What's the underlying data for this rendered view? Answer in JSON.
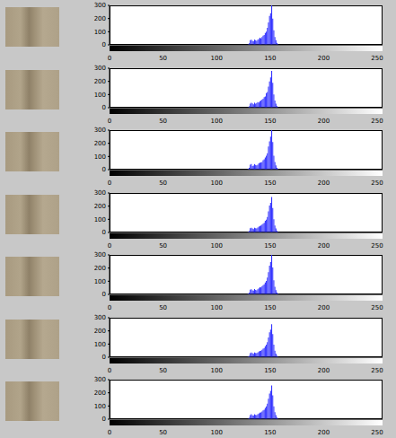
{
  "chart_data": [
    {
      "type": "histogram",
      "color": "#3333ff",
      "bins": [
        128,
        129,
        130,
        131,
        132,
        133,
        134,
        135,
        136,
        137,
        138,
        139,
        140,
        141,
        142,
        143,
        144,
        145,
        146,
        147,
        148,
        149,
        150,
        151,
        152,
        153,
        154,
        155,
        156,
        157,
        158
      ],
      "counts": [
        0,
        5,
        12,
        35,
        40,
        30,
        28,
        40,
        35,
        30,
        40,
        45,
        55,
        50,
        60,
        70,
        75,
        90,
        100,
        130,
        170,
        220,
        240,
        300,
        200,
        110,
        60,
        35,
        15,
        5
      ],
      "xlim": [
        0,
        255
      ],
      "ylim": [
        0,
        300
      ],
      "xticks": [
        0,
        50,
        100,
        150,
        200,
        250
      ],
      "yticks": [
        0,
        100,
        200,
        300
      ]
    },
    {
      "type": "histogram",
      "color": "#3333ff",
      "bins": [
        128,
        129,
        130,
        131,
        132,
        133,
        134,
        135,
        136,
        137,
        138,
        139,
        140,
        141,
        142,
        143,
        144,
        145,
        146,
        147,
        148,
        149,
        150,
        151,
        152,
        153,
        154,
        155,
        156,
        157,
        158
      ],
      "counts": [
        0,
        4,
        10,
        30,
        38,
        32,
        25,
        38,
        30,
        35,
        42,
        40,
        50,
        55,
        62,
        68,
        80,
        85,
        110,
        120,
        160,
        200,
        230,
        280,
        190,
        100,
        55,
        30,
        12,
        4
      ],
      "xlim": [
        0,
        255
      ],
      "ylim": [
        0,
        300
      ],
      "xticks": [
        0,
        50,
        100,
        150,
        200,
        250
      ],
      "yticks": [
        0,
        100,
        200,
        300
      ]
    },
    {
      "type": "histogram",
      "color": "#3333ff",
      "bins": [
        128,
        129,
        130,
        131,
        132,
        133,
        134,
        135,
        136,
        137,
        138,
        139,
        140,
        141,
        142,
        143,
        144,
        145,
        146,
        147,
        148,
        149,
        150,
        151,
        152,
        153,
        154,
        155,
        156,
        157,
        158
      ],
      "counts": [
        0,
        6,
        14,
        38,
        42,
        28,
        30,
        42,
        36,
        32,
        38,
        48,
        52,
        55,
        58,
        72,
        78,
        92,
        105,
        125,
        175,
        215,
        250,
        300,
        210,
        105,
        58,
        32,
        14,
        5
      ],
      "xlim": [
        0,
        255
      ],
      "ylim": [
        0,
        300
      ],
      "xticks": [
        0,
        50,
        100,
        150,
        200,
        250
      ],
      "yticks": [
        0,
        100,
        200,
        300
      ]
    },
    {
      "type": "histogram",
      "color": "#3333ff",
      "bins": [
        128,
        129,
        130,
        131,
        132,
        133,
        134,
        135,
        136,
        137,
        138,
        139,
        140,
        141,
        142,
        143,
        144,
        145,
        146,
        147,
        148,
        149,
        150,
        151,
        152,
        153,
        154,
        155,
        156,
        157,
        158
      ],
      "counts": [
        0,
        5,
        11,
        32,
        36,
        30,
        26,
        36,
        33,
        30,
        38,
        44,
        50,
        52,
        60,
        66,
        74,
        88,
        98,
        118,
        160,
        205,
        225,
        270,
        185,
        100,
        52,
        30,
        12,
        4
      ],
      "xlim": [
        0,
        255
      ],
      "ylim": [
        0,
        300
      ],
      "xticks": [
        0,
        50,
        100,
        150,
        200,
        250
      ],
      "yticks": [
        0,
        100,
        200,
        300
      ]
    },
    {
      "type": "histogram",
      "color": "#3333ff",
      "bins": [
        128,
        129,
        130,
        131,
        132,
        133,
        134,
        135,
        136,
        137,
        138,
        139,
        140,
        141,
        142,
        143,
        144,
        145,
        146,
        147,
        148,
        149,
        150,
        151,
        152,
        153,
        154,
        155,
        156,
        157,
        158
      ],
      "counts": [
        0,
        6,
        13,
        36,
        40,
        31,
        29,
        41,
        34,
        31,
        40,
        46,
        54,
        52,
        61,
        70,
        76,
        90,
        102,
        128,
        168,
        218,
        245,
        300,
        205,
        108,
        58,
        33,
        14,
        5
      ],
      "xlim": [
        0,
        255
      ],
      "ylim": [
        0,
        300
      ],
      "xticks": [
        0,
        50,
        100,
        150,
        200,
        250
      ],
      "yticks": [
        0,
        100,
        200,
        300
      ]
    },
    {
      "type": "histogram",
      "color": "#3333ff",
      "bins": [
        128,
        129,
        130,
        131,
        132,
        133,
        134,
        135,
        136,
        137,
        138,
        139,
        140,
        141,
        142,
        143,
        144,
        145,
        146,
        147,
        148,
        149,
        150,
        151,
        152,
        153,
        154,
        155,
        156,
        157,
        158
      ],
      "counts": [
        0,
        5,
        10,
        30,
        36,
        30,
        26,
        36,
        32,
        30,
        36,
        42,
        48,
        50,
        56,
        64,
        70,
        84,
        95,
        115,
        150,
        190,
        210,
        250,
        175,
        95,
        50,
        28,
        11,
        4
      ],
      "xlim": [
        0,
        255
      ],
      "ylim": [
        0,
        300
      ],
      "xticks": [
        0,
        50,
        100,
        150,
        200,
        250
      ],
      "yticks": [
        0,
        100,
        200,
        300
      ]
    },
    {
      "type": "histogram",
      "color": "#3333ff",
      "bins": [
        128,
        129,
        130,
        131,
        132,
        133,
        134,
        135,
        136,
        137,
        138,
        139,
        140,
        141,
        142,
        143,
        144,
        145,
        146,
        147,
        148,
        149,
        150,
        151,
        152,
        153,
        154,
        155,
        156,
        157,
        158
      ],
      "counts": [
        0,
        4,
        10,
        31,
        37,
        29,
        27,
        37,
        33,
        30,
        37,
        43,
        50,
        51,
        58,
        66,
        72,
        86,
        98,
        118,
        155,
        195,
        215,
        255,
        180,
        98,
        52,
        30,
        12,
        4
      ],
      "xlim": [
        0,
        255
      ],
      "ylim": [
        0,
        300
      ],
      "xticks": [
        0,
        50,
        100,
        150,
        200,
        250
      ],
      "yticks": [
        0,
        100,
        200,
        300
      ]
    }
  ]
}
